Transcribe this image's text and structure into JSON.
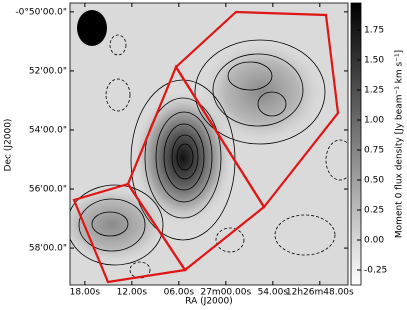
{
  "chart_data": {
    "type": "image",
    "x_label": "RA (J2000)",
    "y_label": "Dec (J2000)",
    "colorbar_label": "Moment 0 flux density [Jy beam⁻¹ km s⁻¹]",
    "colormap": "gray_r",
    "xlim": [
      19.9,
      -15.6
    ],
    "xticks": [
      {
        "value": 18,
        "label": "18.00s"
      },
      {
        "value": 12,
        "label": "12.00s"
      },
      {
        "value": 6,
        "label": "06.00s"
      },
      {
        "value": 0,
        "label": "27m00.00s"
      },
      {
        "value": -6,
        "label": "54.00s"
      },
      {
        "value": -12,
        "label": "12h26m48.00s"
      }
    ],
    "ylim": [
      -59.25,
      -49.7
    ],
    "yticks": [
      {
        "value": -50,
        "label": "-0°50'00.0\""
      },
      {
        "value": -52,
        "label": "52'00.0\""
      },
      {
        "value": -54,
        "label": "54'00.0\""
      },
      {
        "value": -56,
        "label": "56'00.0\""
      },
      {
        "value": -58,
        "label": "58'00.0\""
      }
    ],
    "clim": [
      -0.375,
      1.975
    ],
    "cticks": [
      {
        "value": 1.75,
        "label": "1.75"
      },
      {
        "value": 1.5,
        "label": "1.50"
      },
      {
        "value": 1.25,
        "label": "1.25"
      },
      {
        "value": 1.0,
        "label": "1.00"
      },
      {
        "value": 0.75,
        "label": "0.75"
      },
      {
        "value": 0.5,
        "label": "0.50"
      },
      {
        "value": 0.25,
        "label": "0.25"
      },
      {
        "value": 0.0,
        "label": "0.00"
      },
      {
        "value": -0.25,
        "label": "-0.25"
      }
    ]
  }
}
